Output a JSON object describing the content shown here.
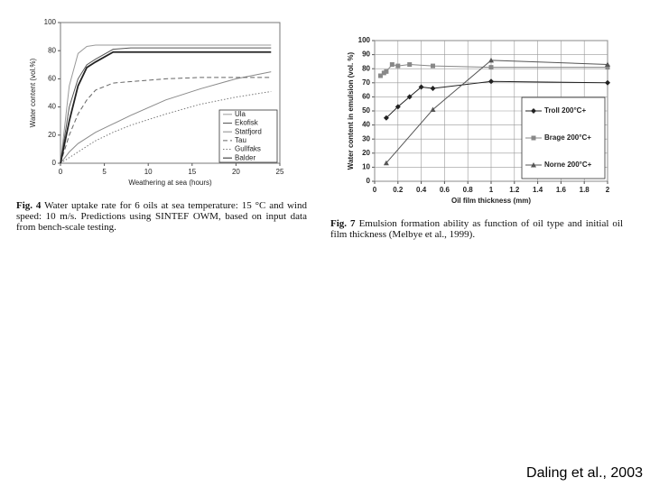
{
  "chart_data": [
    {
      "type": "line",
      "x_label": "Weathering at sea (hours)",
      "y_label": "Water content (vol.%)",
      "caption": {
        "label": "Fig. 4",
        "text": "Water uptake rate for 6 oils at sea temperature: 15 °C and wind speed: 10 m/s. Predictions using SINTEF OWM, based on input data from bench-scale testing."
      },
      "xlim": [
        0,
        25
      ],
      "xticks": [
        0,
        5,
        10,
        15,
        20,
        25
      ],
      "ylim": [
        0,
        100
      ],
      "yticks": [
        0,
        20,
        40,
        60,
        80,
        100
      ],
      "grid": false,
      "legend": "lower right",
      "x": [
        0,
        1,
        2,
        3,
        4,
        6,
        8,
        12,
        16,
        20,
        24
      ],
      "series": [
        {
          "name": "Ula",
          "color": "#9a9a9a",
          "style": "solid",
          "values": [
            0,
            55,
            78,
            83,
            84,
            84,
            84,
            84,
            84,
            84,
            84
          ]
        },
        {
          "name": "Ekofisk",
          "color": "#555555",
          "style": "solid",
          "values": [
            0,
            40,
            60,
            70,
            74,
            81,
            82,
            82,
            82,
            82,
            82
          ]
        },
        {
          "name": "Statfjord",
          "color": "#8a8a8a",
          "style": "solid",
          "values": [
            0,
            8,
            14,
            18,
            22,
            28,
            34,
            45,
            53,
            60,
            65
          ]
        },
        {
          "name": "Tau",
          "color": "#666666",
          "style": "dashed",
          "values": [
            0,
            20,
            35,
            45,
            52,
            57,
            58,
            60,
            61,
            61,
            61
          ]
        },
        {
          "name": "Gullfaks",
          "color": "#777777",
          "style": "dotted",
          "values": [
            0,
            4,
            8,
            12,
            16,
            22,
            27,
            35,
            42,
            47,
            51
          ]
        },
        {
          "name": "Balder",
          "color": "#222222",
          "style": "solid",
          "values": [
            0,
            30,
            55,
            68,
            72,
            79,
            79,
            79,
            79,
            79,
            79
          ]
        }
      ]
    },
    {
      "type": "line",
      "x_label": "Oil film thickness (mm)",
      "y_label": "Water content in emulsion (vol. %)",
      "caption": {
        "label": "Fig. 7",
        "text": "Emulsion formation ability as function of oil type and initial oil film thickness (Melbye et al., 1999)."
      },
      "xlim": [
        0,
        2
      ],
      "xticks": [
        0,
        0.2,
        0.4,
        0.6,
        0.8,
        1,
        1.2,
        1.4,
        1.6,
        1.8,
        2
      ],
      "ylim": [
        0,
        100
      ],
      "yticks": [
        0,
        10,
        20,
        30,
        40,
        50,
        60,
        70,
        80,
        90,
        100
      ],
      "grid": true,
      "legend": "right",
      "series": [
        {
          "name": "Troll 200°C+",
          "color": "#222222",
          "marker": "diamond",
          "x": [
            0.1,
            0.2,
            0.3,
            0.4,
            0.5,
            1,
            2
          ],
          "values": [
            45,
            53,
            60,
            67,
            66,
            71,
            70
          ]
        },
        {
          "name": "Brage 200°C+",
          "color": "#888888",
          "marker": "square",
          "x": [
            0.05,
            0.08,
            0.1,
            0.15,
            0.2,
            0.3,
            0.5,
            1,
            2
          ],
          "values": [
            75,
            77,
            78,
            83,
            82,
            83,
            82,
            81,
            81
          ]
        },
        {
          "name": "Norne 200°C+",
          "color": "#555555",
          "marker": "triangle",
          "x": [
            0.1,
            0.5,
            1,
            2
          ],
          "values": [
            13,
            51,
            86,
            83
          ]
        }
      ]
    }
  ],
  "citation": "Daling et al., 2003"
}
